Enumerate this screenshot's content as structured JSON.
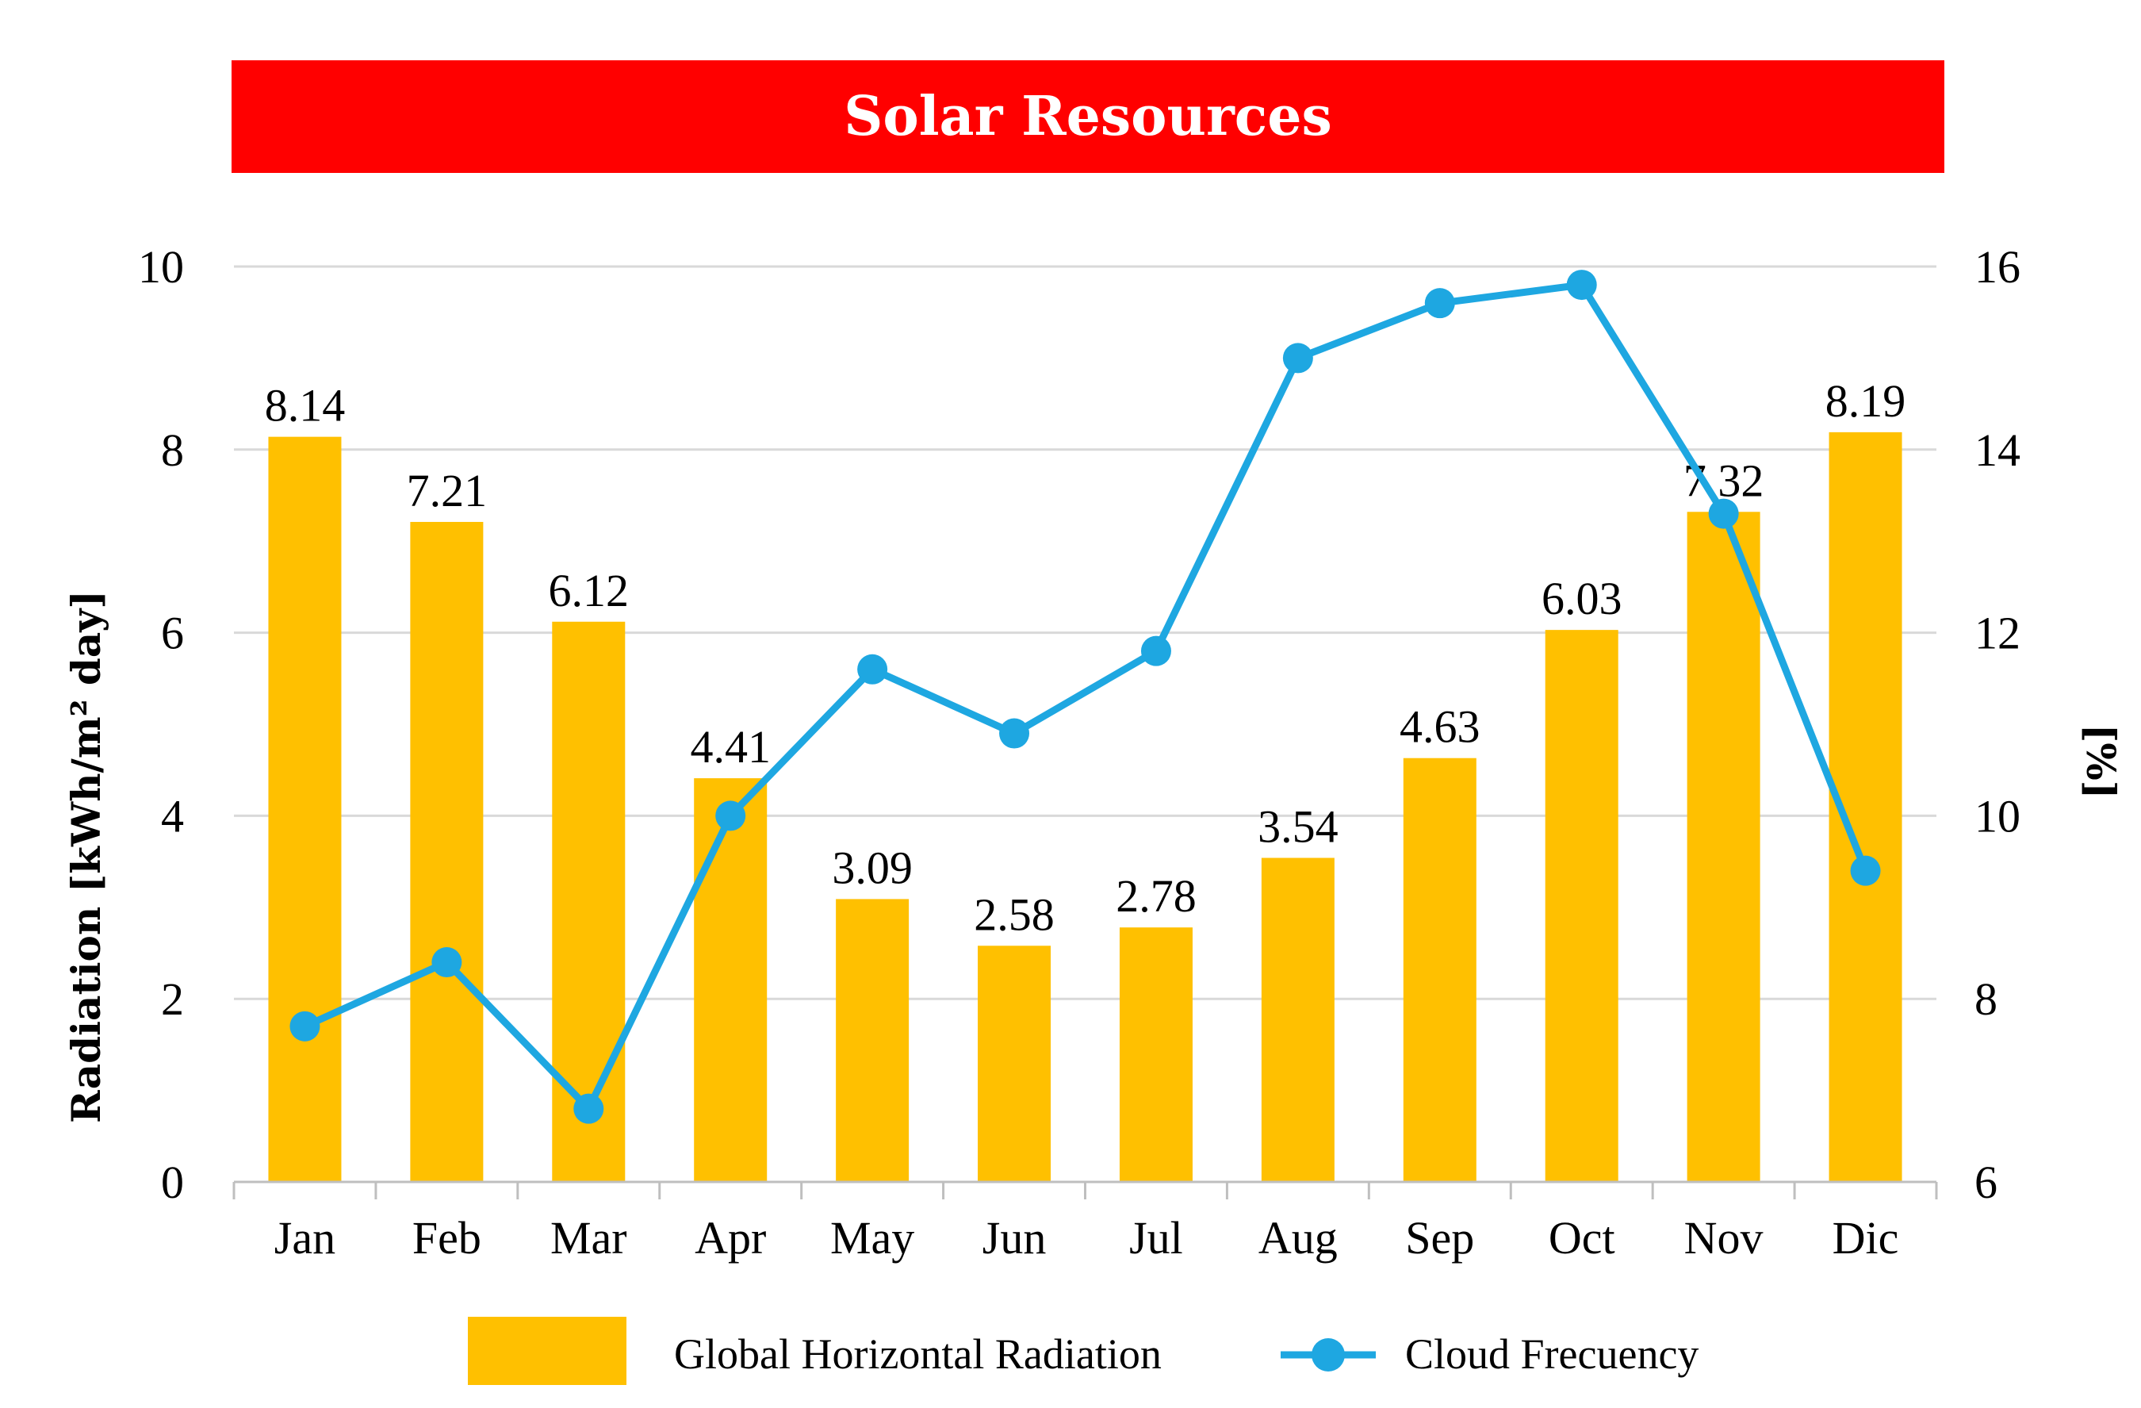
{
  "chart_data": {
    "type": "bar+line",
    "title": "Solar Resources",
    "categories": [
      "Jan",
      "Feb",
      "Mar",
      "Apr",
      "May",
      "Jun",
      "Jul",
      "Aug",
      "Sep",
      "Oct",
      "Nov",
      "Dic"
    ],
    "series": [
      {
        "name": "Global Horizontal Radiation",
        "type": "bar",
        "axis": "left",
        "color": "#ffc000",
        "values": [
          8.14,
          7.21,
          6.12,
          4.41,
          3.09,
          2.58,
          2.78,
          3.54,
          4.63,
          6.03,
          7.32,
          8.19
        ],
        "labels": [
          "8.14",
          "7.21",
          "6.12",
          "4.41",
          "3.09",
          "2.58",
          "2.78",
          "3.54",
          "4.63",
          "6.03",
          "7.32",
          "8.19"
        ]
      },
      {
        "name": "Cloud Frecuency",
        "type": "line",
        "axis": "right",
        "color": "#1ea7e1",
        "values": [
          7.7,
          8.4,
          6.8,
          10.0,
          11.6,
          10.9,
          11.8,
          15.0,
          15.6,
          15.8,
          13.3,
          9.4
        ]
      }
    ],
    "y_left": {
      "label": "Radiation [kWh/m² day]",
      "min": 0,
      "max": 10,
      "ticks": [
        "0",
        "2",
        "4",
        "6",
        "8",
        "10"
      ]
    },
    "y_right": {
      "label": "[%]",
      "min": 6,
      "max": 16,
      "ticks": [
        "6",
        "8",
        "10",
        "12",
        "14",
        "16"
      ]
    },
    "grid": true,
    "legend_position": "bottom"
  }
}
